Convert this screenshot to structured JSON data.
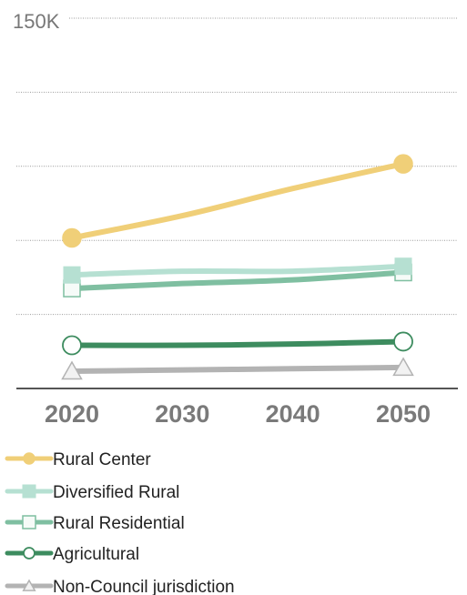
{
  "chart_data": {
    "type": "line",
    "title": "",
    "xlabel": "",
    "ylabel": "",
    "x": [
      2020,
      2030,
      2040,
      2050
    ],
    "x_tick_labels": [
      "2020",
      "2030",
      "2040",
      "2050"
    ],
    "ylim": [
      0,
      150000
    ],
    "y_tick_labels": [
      "150K"
    ],
    "y_gridlines": [
      30000,
      60000,
      90000,
      120000,
      150000
    ],
    "grid": true,
    "legend_position": "bottom",
    "series": [
      {
        "name": "Rural Center",
        "color": "#f0cf78",
        "marker": "circle-filled",
        "values": [
          61000,
          70000,
          81000,
          91000
        ]
      },
      {
        "name": "Diversified Rural",
        "color": "#b6e0d2",
        "marker": "square-filled",
        "values": [
          46000,
          47500,
          47500,
          49500
        ]
      },
      {
        "name": "Rural Residential",
        "color": "#7fbfa1",
        "marker": "square-open",
        "values": [
          40500,
          42500,
          44000,
          47000
        ]
      },
      {
        "name": "Agricultural",
        "color": "#3d8c5f",
        "marker": "circle-open",
        "values": [
          17500,
          17500,
          18000,
          19000
        ]
      },
      {
        "name": "Non-Council jurisdiction",
        "color": "#b3b3b3",
        "marker": "triangle-open",
        "values": [
          7000,
          7500,
          8000,
          8500
        ]
      }
    ]
  }
}
